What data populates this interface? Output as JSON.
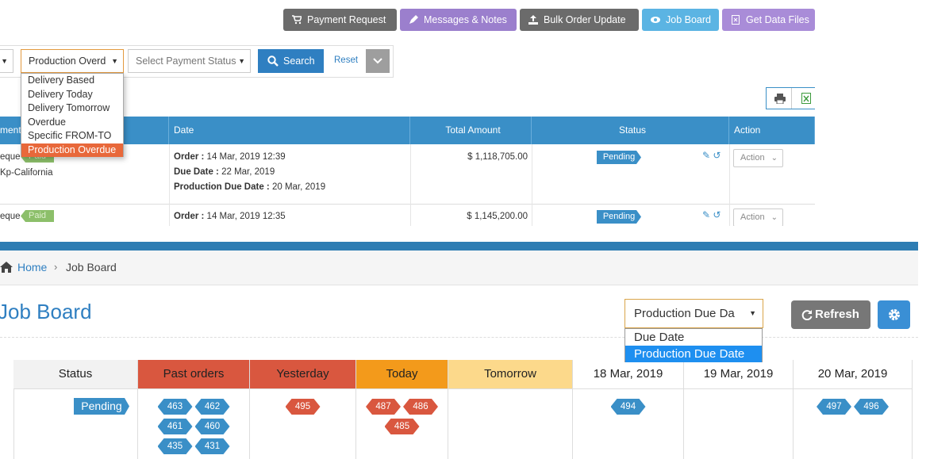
{
  "top_toolbar": {
    "buttons": [
      "Payment Request",
      "Messages & Notes",
      "Bulk Order Update",
      "Job Board",
      "Get Data Files"
    ]
  },
  "filters": {
    "production_select": "Production Overd",
    "payment_status_select": "Select Payment Status",
    "search": "Search",
    "reset": "Reset",
    "options": [
      "Delivery Based",
      "Delivery Today",
      "Delivery Tomorrow",
      "Overdue",
      "Specific FROM-TO",
      "Production Overdue"
    ]
  },
  "orders_table": {
    "headers": [
      "ment",
      "Date",
      "Total Amount",
      "Status",
      "Action"
    ],
    "rows": [
      {
        "customer": "eque",
        "payment_badge": "Paid",
        "location": "Kp-California",
        "dates": [
          {
            "label": "Order :",
            "value": "14 Mar, 2019 12:39"
          },
          {
            "label": "Due Date :",
            "value": "22 Mar, 2019"
          },
          {
            "label": "Production Due Date :",
            "value": "20 Mar, 2019"
          }
        ],
        "total": "$ 1,118,705.00",
        "status": "Pending",
        "action": "Action"
      },
      {
        "customer": "eque",
        "payment_badge": "Paid",
        "dates": [
          {
            "label": "Order :",
            "value": "14 Mar, 2019 12:35"
          }
        ],
        "total": "$ 1,145,200.00",
        "status": "Pending",
        "action": "Action"
      }
    ]
  },
  "breadcrumb": [
    "Home",
    "Job Board"
  ],
  "job_board": {
    "title": "Job Board",
    "date_select": "Production Due Da",
    "date_options": [
      "Due Date",
      "Production Due Date"
    ],
    "refresh": "Refresh",
    "columns": [
      "Status",
      "Past orders",
      "Yesterday",
      "Today",
      "Tomorrow",
      "18 Mar, 2019",
      "19 Mar, 2019",
      "20 Mar, 2019"
    ],
    "rows": [
      {
        "status": "Pending",
        "cells": [
          [
            "463",
            "462",
            "461",
            "460",
            "435",
            "431"
          ],
          [
            "495"
          ],
          [
            "487",
            "486",
            "485"
          ],
          [],
          [
            "494"
          ],
          [],
          [
            "497",
            "496"
          ]
        ]
      }
    ]
  }
}
